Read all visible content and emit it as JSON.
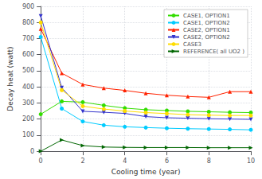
{
  "chart_data": {
    "type": "line",
    "title": "",
    "xlabel": "Cooling time (year)",
    "ylabel": "Decay heat (watt)",
    "x": [
      0,
      1,
      2,
      3,
      4,
      5,
      6,
      7,
      8,
      9,
      10
    ],
    "xlim": [
      0,
      10
    ],
    "xticks": [
      0,
      2,
      4,
      6,
      8,
      10
    ],
    "ylim": [
      0,
      900
    ],
    "yticks": [
      0,
      100,
      200,
      300,
      400,
      500,
      600,
      700,
      800,
      900
    ],
    "grid": true,
    "legend": "upper right",
    "series": [
      {
        "name": "CASE1, OPTION1",
        "color": "#33dd00",
        "marker": "circle",
        "values": [
          230,
          310,
          305,
          285,
          268,
          258,
          253,
          248,
          245,
          242,
          240
        ]
      },
      {
        "name": "CASE1, OPTION2",
        "color": "#00ccff",
        "marker": "circle",
        "values": [
          710,
          265,
          185,
          162,
          152,
          147,
          143,
          140,
          138,
          136,
          133
        ]
      },
      {
        "name": "CASE2, OPTION1",
        "color": "#ff2200",
        "marker": "triangle-up",
        "values": [
          760,
          485,
          415,
          392,
          378,
          360,
          348,
          340,
          335,
          370,
          370
        ]
      },
      {
        "name": "CASE2, OPTION2",
        "color": "#3333cc",
        "marker": "triangle-down",
        "values": [
          840,
          395,
          248,
          242,
          235,
          215,
          208,
          205,
          202,
          200,
          198
        ]
      },
      {
        "name": "CASE3",
        "color": "#ffdd00",
        "marker": "circle",
        "values": [
          800,
          380,
          280,
          262,
          250,
          240,
          234,
          227,
          224,
          222,
          222
        ]
      },
      {
        "name": "REFERENCE( all UO2 )",
        "color": "#006600",
        "marker": "triangle-right",
        "values": [
          0,
          70,
          35,
          26,
          24,
          23,
          23,
          23,
          22,
          22,
          22
        ]
      }
    ]
  }
}
